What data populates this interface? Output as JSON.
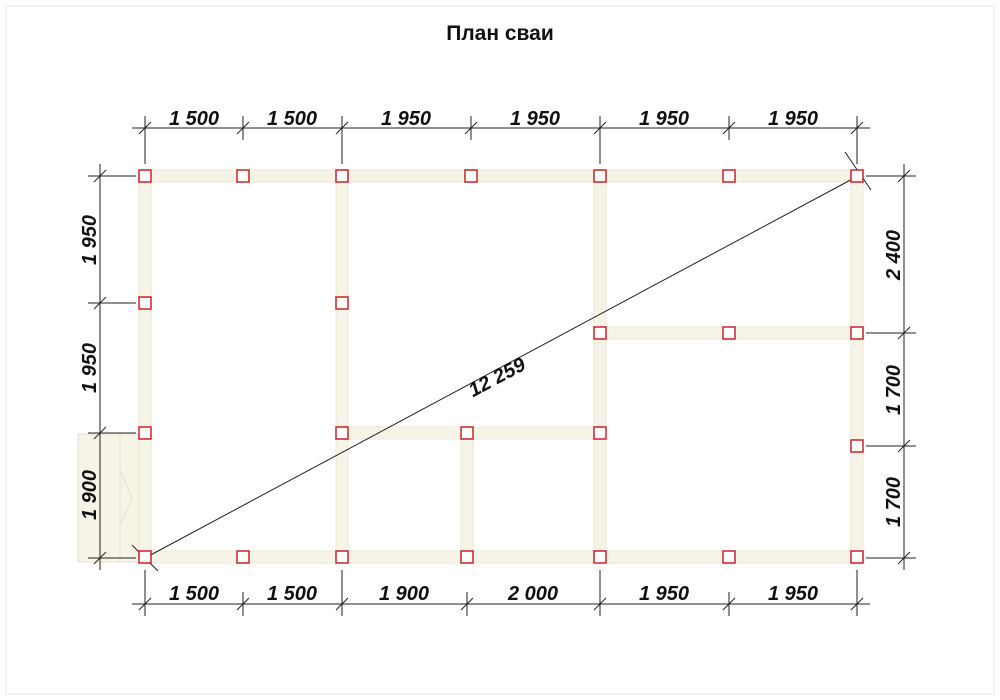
{
  "title": "План сваи",
  "top_dims": [
    "1 500",
    "1 500",
    "1 950",
    "1 950",
    "1 950",
    "1 950"
  ],
  "bottom_dims": [
    "1 500",
    "1 500",
    "1 900",
    "2 000",
    "1 950",
    "1 950"
  ],
  "left_dims": [
    "1 950",
    "1 950",
    "1 900"
  ],
  "right_dims": [
    "2 400",
    "1 700",
    "1 700"
  ],
  "diagonal": "12 259",
  "colors": {
    "pile": "#cc2222",
    "beam": "#f6f4e6",
    "beam_edge": "#e8e4cc",
    "line": "#222222"
  }
}
